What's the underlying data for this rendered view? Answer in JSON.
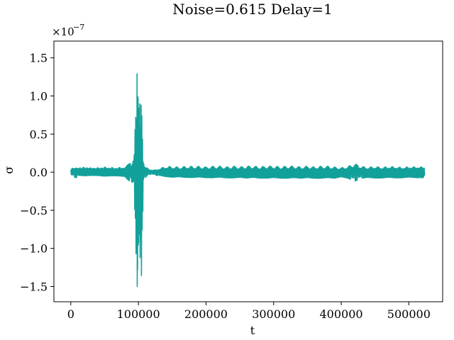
{
  "chart_data": {
    "type": "line",
    "title": "Noise=0.615 Delay=1",
    "xlabel": "t",
    "ylabel": "σ",
    "xlim": [
      -25000,
      550000
    ],
    "ylim": [
      -1.7e-07,
      1.72e-07
    ],
    "y_offset_text": "×10",
    "y_offset_exponent": "−7",
    "y_scale": 1e-07,
    "x_ticks": [
      0,
      100000,
      200000,
      300000,
      400000,
      500000
    ],
    "x_tick_labels": [
      "0",
      "100000",
      "200000",
      "300000",
      "400000",
      "500000"
    ],
    "y_ticks": [
      -1.5e-07,
      -1e-07,
      -5e-08,
      0,
      5e-08,
      1e-07,
      1.5e-07
    ],
    "y_tick_labels": [
      "−1.5",
      "−1.0",
      "−0.5",
      "0.0",
      "0.5",
      "1.0",
      "1.5"
    ],
    "grid": false,
    "series": [
      {
        "color": "#12a19a",
        "x": [
          0,
          5000,
          10000,
          20000,
          30000,
          40000,
          50000,
          60000,
          70000,
          80000,
          88000,
          92000,
          94000,
          95000,
          96000,
          97000,
          98000,
          98500,
          99000,
          99500,
          100000,
          100500,
          101000,
          102000,
          103000,
          104000,
          105000,
          106000,
          107000,
          108000,
          110000,
          115000,
          120000,
          125000,
          130000,
          140000,
          150000,
          160000,
          170000,
          180000,
          190000,
          200000,
          210000,
          220000,
          230000,
          240000,
          250000,
          260000,
          270000,
          280000,
          290000,
          300000,
          310000,
          320000,
          330000,
          340000,
          350000,
          360000,
          370000,
          380000,
          390000,
          400000,
          410000,
          415000,
          420000,
          425000,
          430000,
          440000,
          450000,
          460000,
          470000,
          480000,
          490000,
          500000,
          510000,
          520000,
          524000
        ],
        "y_max": [
          6e-09,
          7e-09,
          7e-09,
          8e-09,
          7e-09,
          7e-09,
          8e-09,
          7e-09,
          7e-09,
          8e-09,
          1.2e-08,
          1.5e-08,
          3e-08,
          7.5e-08,
          9e-08,
          1.12e-07,
          1.4e-07,
          1.57e-07,
          1.35e-07,
          1.5e-07,
          1e-07,
          9e-08,
          7.5e-08,
          1e-07,
          9.5e-08,
          1.12e-07,
          9e-08,
          6e-08,
          2e-08,
          1.2e-08,
          1e-08,
          4e-09,
          4e-09,
          3e-09,
          5e-09,
          8e-09,
          8e-09,
          7e-09,
          8e-09,
          8e-09,
          8e-09,
          7e-09,
          8e-09,
          8e-09,
          7e-09,
          8e-09,
          7e-09,
          8e-09,
          8e-09,
          7e-09,
          8e-09,
          8e-09,
          7e-09,
          8e-09,
          8e-09,
          7e-09,
          8e-09,
          7e-09,
          8e-09,
          8e-09,
          7e-09,
          6e-09,
          8e-09,
          1e-08,
          1.2e-08,
          1e-08,
          8e-09,
          7e-09,
          8e-09,
          7e-09,
          8e-09,
          8e-09,
          7e-09,
          8e-09,
          8e-09,
          8e-09,
          6e-09
        ],
        "y_min": [
          -6e-09,
          -7e-09,
          -7e-09,
          -8e-09,
          -7e-09,
          -7e-09,
          -8e-09,
          -7e-09,
          -7e-09,
          -8e-09,
          -1.2e-08,
          -1.5e-08,
          -3e-08,
          -7e-08,
          -1e-07,
          -1.2e-07,
          -1.45e-07,
          -1.55e-07,
          -1.35e-07,
          -1.25e-07,
          -1e-07,
          -8.5e-08,
          -1e-07,
          -1.3e-07,
          -1e-07,
          -1.48e-07,
          -1.3e-07,
          -9e-08,
          -1.5e-08,
          -1.2e-08,
          -1e-08,
          -3e-09,
          -3e-09,
          -4e-09,
          -5e-09,
          -7e-09,
          -8e-09,
          -7e-09,
          -8e-09,
          -8e-09,
          -7e-09,
          -8e-09,
          -8e-09,
          -7e-09,
          -8e-09,
          -8e-09,
          -7e-09,
          -8e-09,
          -7e-09,
          -8e-09,
          -8e-09,
          -7e-09,
          -8e-09,
          -8e-09,
          -7e-09,
          -8e-09,
          -7e-09,
          -8e-09,
          -8e-09,
          -7e-09,
          -8e-09,
          -6e-09,
          -8e-09,
          -1e-08,
          -1.2e-08,
          -1e-08,
          -8e-09,
          -7e-09,
          -8e-09,
          -8e-09,
          -7e-09,
          -8e-09,
          -8e-09,
          -7e-09,
          -8e-09,
          -8e-09,
          -6e-09
        ]
      }
    ]
  }
}
